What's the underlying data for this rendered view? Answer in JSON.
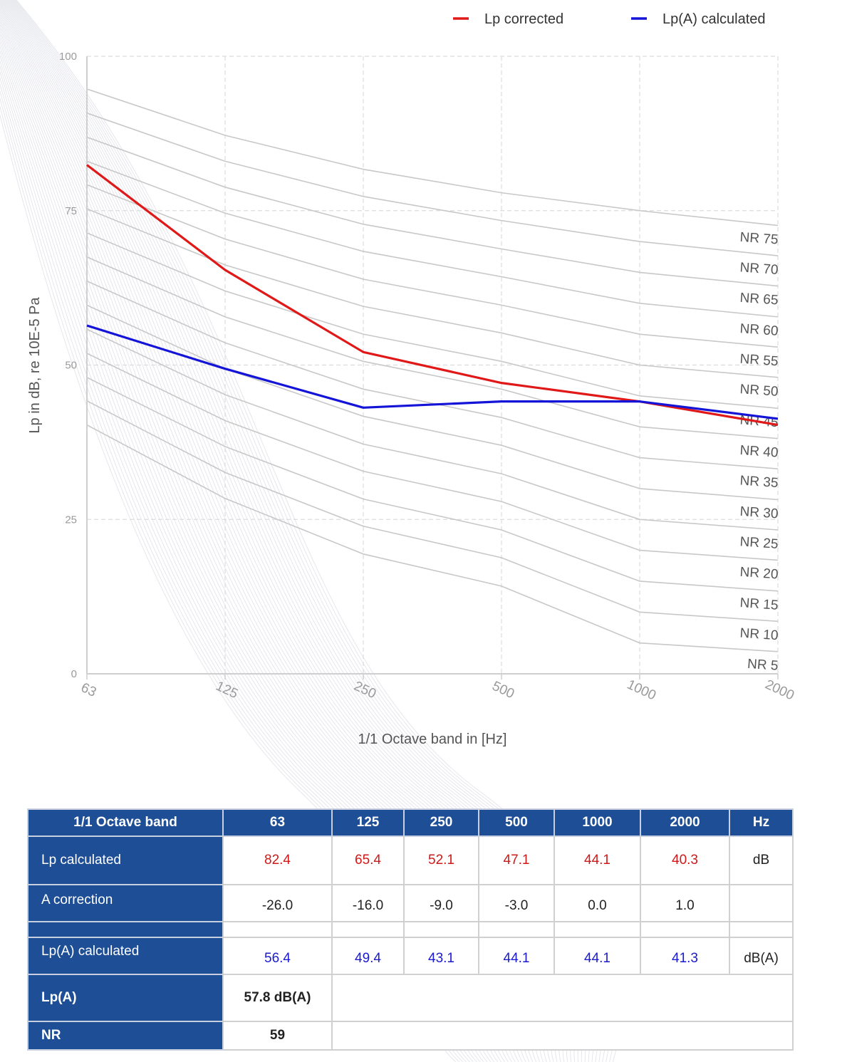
{
  "chart_data": {
    "type": "line",
    "x": [
      "63",
      "125",
      "250",
      "500",
      "1000",
      "2000"
    ],
    "xlabel": "1/1 Octave band in [Hz]",
    "ylabel": "Lp in dB, re 10E-5 Pa",
    "ylim": [
      0,
      100
    ],
    "yticks": [
      "0",
      "25",
      "50",
      "75",
      "100"
    ],
    "grid": true,
    "legend_position": "top",
    "series": [
      {
        "name": "Lp corrected",
        "color": "#e01818",
        "values": [
          82.4,
          65.4,
          52.1,
          47.1,
          44.1,
          40.3
        ]
      },
      {
        "name": "Lp(A) calculated",
        "color": "#1414d8",
        "values": [
          56.4,
          49.4,
          43.1,
          44.1,
          44.1,
          41.3
        ]
      }
    ],
    "nr_curves": [
      {
        "label": "NR 75",
        "values": [
          94.7,
          87.2,
          81.7,
          77.9,
          75.0,
          72.6
        ]
      },
      {
        "label": "NR 70",
        "values": [
          90.8,
          83.0,
          77.3,
          73.4,
          70.0,
          67.7
        ]
      },
      {
        "label": "NR 65",
        "values": [
          86.9,
          78.8,
          72.8,
          68.8,
          65.0,
          62.8
        ]
      },
      {
        "label": "NR 60",
        "values": [
          83.0,
          74.6,
          68.4,
          64.3,
          60.0,
          57.8
        ]
      },
      {
        "label": "NR 55",
        "values": [
          79.2,
          70.4,
          63.9,
          59.7,
          55.0,
          52.9
        ]
      },
      {
        "label": "NR 50",
        "values": [
          75.3,
          66.2,
          59.5,
          55.2,
          50.0,
          48.0
        ]
      },
      {
        "label": "NR 45",
        "values": [
          71.4,
          62.0,
          55.0,
          50.6,
          45.0,
          43.0
        ]
      },
      {
        "label": "NR 40",
        "values": [
          67.5,
          57.8,
          50.6,
          46.1,
          40.0,
          38.1
        ]
      },
      {
        "label": "NR 35",
        "values": [
          63.6,
          53.6,
          46.1,
          41.5,
          35.0,
          33.2
        ]
      },
      {
        "label": "NR 30",
        "values": [
          59.7,
          49.4,
          41.7,
          37.0,
          30.0,
          28.2
        ]
      },
      {
        "label": "NR 25",
        "values": [
          55.8,
          45.2,
          37.2,
          32.4,
          25.0,
          23.3
        ]
      },
      {
        "label": "NR 20",
        "values": [
          51.9,
          41.0,
          32.8,
          27.9,
          20.0,
          18.4
        ]
      },
      {
        "label": "NR 15",
        "values": [
          48.0,
          36.8,
          28.3,
          23.3,
          15.0,
          13.4
        ]
      },
      {
        "label": "NR 10",
        "values": [
          44.2,
          32.6,
          23.9,
          18.8,
          10.0,
          8.5
        ]
      },
      {
        "label": "NR 5",
        "values": [
          40.3,
          28.4,
          19.4,
          14.2,
          5.0,
          3.6
        ]
      }
    ]
  },
  "table": {
    "header": {
      "label": "1/1 Octave band",
      "bands": [
        "63",
        "125",
        "250",
        "500",
        "1000",
        "2000"
      ],
      "unit": "Hz"
    },
    "rows": {
      "lp_calculated": {
        "label": "Lp calculated",
        "values": [
          "82.4",
          "65.4",
          "52.1",
          "47.1",
          "44.1",
          "40.3"
        ],
        "unit": "dB"
      },
      "a_correction": {
        "label": "A correction",
        "values": [
          "-26.0",
          "-16.0",
          "-9.0",
          "-3.0",
          "0.0",
          "1.0"
        ],
        "unit": ""
      },
      "lpa_calculated": {
        "label": "Lp(A) calculated",
        "values": [
          "56.4",
          "49.4",
          "43.1",
          "44.1",
          "44.1",
          "41.3"
        ],
        "unit": "dB(A)"
      }
    },
    "summary": {
      "lpa": {
        "label": "Lp(A)",
        "value": "57.8 dB(A)"
      },
      "nr": {
        "label": "NR",
        "value": "59"
      }
    }
  },
  "colors": {
    "header_bg": "#1e4e96",
    "red": "#d01818",
    "blue": "#1a1ad0",
    "nr_curve": "#c8c8c8"
  }
}
